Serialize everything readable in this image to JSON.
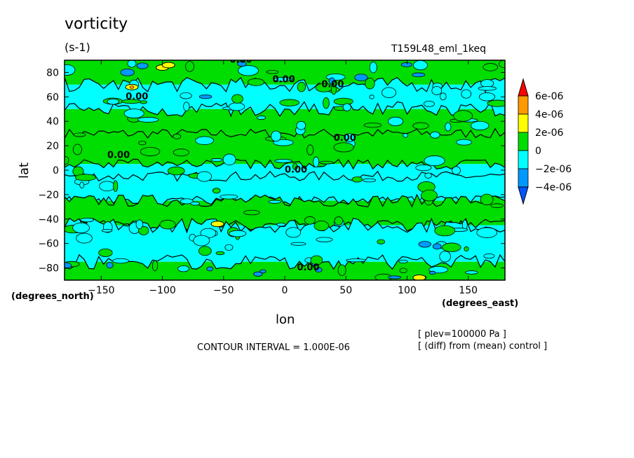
{
  "chart_data": {
    "type": "heatmap",
    "title": "vorticity",
    "units": "(s-1)",
    "run_label": "T159L48_eml_1keq",
    "xlabel": "lon",
    "ylabel": "lat",
    "x_units": "(degrees_east)",
    "y_units": "(degrees_north)",
    "xlim": [
      -180,
      180
    ],
    "ylim": [
      -90,
      90
    ],
    "x_ticks": [
      -150,
      -100,
      -50,
      0,
      50,
      100,
      150
    ],
    "x_tick_labels": [
      "−150",
      "−100",
      "−50",
      "0",
      "50",
      "100",
      "150"
    ],
    "y_ticks": [
      80,
      60,
      40,
      20,
      0,
      -20,
      -40,
      -60,
      -80
    ],
    "y_tick_labels": [
      "80",
      "60",
      "40",
      "20",
      "0",
      "−20",
      "−40",
      "−60",
      "−80"
    ],
    "contour_interval_text": "CONTOUR INTERVAL = 1.000E-06",
    "contour_labels": [
      "0.00",
      "0.00",
      "0.00",
      "0.00",
      "0.00",
      "0.00",
      "0.00",
      "0.00"
    ],
    "notes": [
      "[ plev=100000 Pa ]",
      "[ (diff) from (mean) control ]"
    ],
    "colorbar": {
      "levels": [
        "6e-06",
        "4e-06",
        "2e-06",
        "0",
        "−2e-06",
        "−4e-06"
      ],
      "colors": [
        "#ff0000",
        "#ff9900",
        "#ffff00",
        "#00dd00",
        "#00ffff",
        "#0099ff",
        "#0055ff"
      ]
    },
    "bands": [
      {
        "lat": [
          70,
          90
        ],
        "value": "positive"
      },
      {
        "lat": [
          50,
          70
        ],
        "value": "negative"
      },
      {
        "lat": [
          30,
          50
        ],
        "value": "mixed"
      },
      {
        "lat": [
          5,
          30
        ],
        "value": "positive"
      },
      {
        "lat": [
          -5,
          5
        ],
        "value": "negative"
      },
      {
        "lat": [
          -25,
          -5
        ],
        "value": "negative"
      },
      {
        "lat": [
          -45,
          -25
        ],
        "value": "positive"
      },
      {
        "lat": [
          -75,
          -45
        ],
        "value": "negative"
      },
      {
        "lat": [
          -90,
          -75
        ],
        "value": "positive"
      }
    ]
  }
}
